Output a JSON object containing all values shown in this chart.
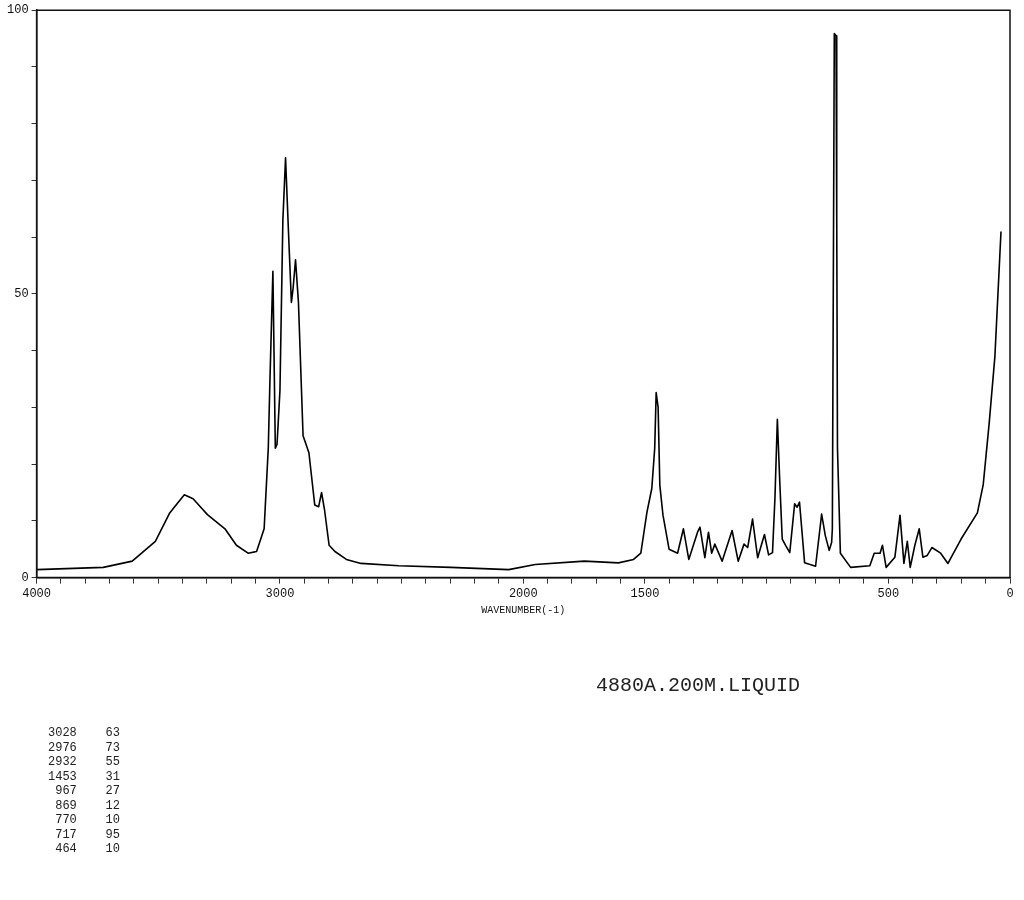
{
  "chart_data": {
    "type": "line",
    "xlabel": "WAVENUMBER(-1)",
    "xlim": [
      4000,
      0
    ],
    "ylim": [
      0,
      100
    ],
    "xticks": [
      4000,
      {
        "value": 3900,
        "label": null
      },
      {
        "value": 3800,
        "label": null
      },
      {
        "value": 3700,
        "label": null
      },
      {
        "value": 3600,
        "label": null
      },
      {
        "value": 3500,
        "label": null
      },
      {
        "value": 3400,
        "label": null
      },
      {
        "value": 3300,
        "label": null
      },
      {
        "value": 3200,
        "label": null
      },
      {
        "value": 3100,
        "label": null
      },
      3000,
      {
        "value": 2900,
        "label": null
      },
      {
        "value": 2800,
        "label": null
      },
      {
        "value": 2700,
        "label": null
      },
      {
        "value": 2600,
        "label": null
      },
      {
        "value": 2500,
        "label": null
      },
      {
        "value": 2400,
        "label": null
      },
      {
        "value": 2300,
        "label": null
      },
      {
        "value": 2200,
        "label": null
      },
      {
        "value": 2100,
        "label": null
      },
      2000,
      {
        "value": 1900,
        "label": null
      },
      {
        "value": 1800,
        "label": null
      },
      {
        "value": 1700,
        "label": null
      },
      {
        "value": 1600,
        "label": null
      },
      1500,
      {
        "value": 1400,
        "label": null
      },
      {
        "value": 1300,
        "label": null
      },
      {
        "value": 1200,
        "label": null
      },
      {
        "value": 1100,
        "label": null
      },
      {
        "value": 1000,
        "label": null
      },
      {
        "value": 900,
        "label": null
      },
      {
        "value": 800,
        "label": null
      },
      {
        "value": 700,
        "label": null
      },
      {
        "value": 600,
        "label": null
      },
      500,
      {
        "value": 400,
        "label": null
      },
      {
        "value": 300,
        "label": null
      },
      {
        "value": 200,
        "label": null
      },
      {
        "value": 100,
        "label": null
      },
      0
    ],
    "yticks": [
      0,
      {
        "value": 10,
        "label": null
      },
      {
        "value": 20,
        "label": null
      },
      {
        "value": 30,
        "label": null
      },
      {
        "value": 40,
        "label": null
      },
      50,
      {
        "value": 60,
        "label": null
      },
      {
        "value": 70,
        "label": null
      },
      {
        "value": 80,
        "label": null
      },
      {
        "value": 90,
        "label": null
      },
      100
    ],
    "grid": false,
    "legend": false,
    "marker": "none",
    "line_style": "solid",
    "series": [
      {
        "color": "#000000",
        "x": [
          4000,
          3726,
          3607,
          3512,
          3453,
          3393,
          3357,
          3298,
          3226,
          3179,
          3131,
          3096,
          3065,
          3048,
          3041,
          3029,
          3019,
          3012,
          3000,
          2988,
          2977,
          2965,
          2953,
          2946,
          2936,
          2924,
          2905,
          2881,
          2857,
          2841,
          2829,
          2817,
          2798,
          2774,
          2727,
          2667,
          2512,
          2298,
          2060,
          1951,
          1749,
          1609,
          1547,
          1517,
          1492,
          1472,
          1460,
          1454,
          1446,
          1439,
          1426,
          1401,
          1366,
          1342,
          1320,
          1284,
          1274,
          1254,
          1239,
          1226,
          1213,
          1183,
          1142,
          1117,
          1093,
          1078,
          1058,
          1037,
          1009,
          992,
          976,
          966,
          956,
          946,
          936,
          921,
          905,
          885,
          875,
          865,
          844,
          799,
          774,
          759,
          743,
          733,
          730,
          722,
          715,
          712,
          709,
          697,
          655,
          576,
          558,
          534,
          524,
          509,
          473,
          452,
          436,
          422,
          410,
          391,
          373,
          358,
          340,
          321,
          285,
          255,
          201,
          134,
          110,
          86,
          62,
          37
        ],
        "values": [
          1.4,
          1.8,
          2.9,
          6.4,
          11.4,
          14.6,
          13.9,
          11.1,
          8.6,
          5.7,
          4.3,
          4.6,
          8.6,
          22.8,
          35,
          54,
          22.8,
          23.5,
          33,
          63,
          74,
          61,
          48.5,
          51,
          56,
          48.5,
          25,
          22,
          12.8,
          12.5,
          15,
          12,
          5.7,
          4.6,
          3.2,
          2.5,
          2.1,
          1.8,
          1.4,
          2.3,
          2.9,
          2.6,
          3.2,
          4.3,
          11.5,
          15.7,
          22.8,
          32.6,
          30,
          16.3,
          11,
          5,
          4.3,
          8.6,
          3.2,
          8,
          8.9,
          3.5,
          8,
          4.3,
          5.9,
          2.9,
          8.3,
          2.9,
          5.9,
          5.3,
          10.3,
          3.5,
          7.6,
          4,
          4.4,
          13.9,
          27.9,
          16.8,
          6.8,
          5.6,
          4.4,
          13,
          12.4,
          13.3,
          2.6,
          2,
          11.2,
          7.4,
          4.8,
          6.2,
          8.6,
          95.9,
          95.5,
          63.5,
          22.8,
          4.3,
          1.8,
          2.1,
          4.3,
          4.3,
          5.7,
          1.8,
          3.6,
          11,
          2.5,
          6.4,
          1.8,
          5.7,
          8.6,
          3.6,
          3.9,
          5.3,
          4.3,
          2.5,
          6.8,
          11.4,
          16.4,
          27,
          39,
          61
        ]
      }
    ],
    "annotations": [
      "4880A.200M.LIQUID",
      "3028    63",
      "2976    73",
      "2932    55",
      "1453    31",
      "967    27",
      "869    12",
      "770    10",
      "717    95",
      "464    10"
    ]
  }
}
